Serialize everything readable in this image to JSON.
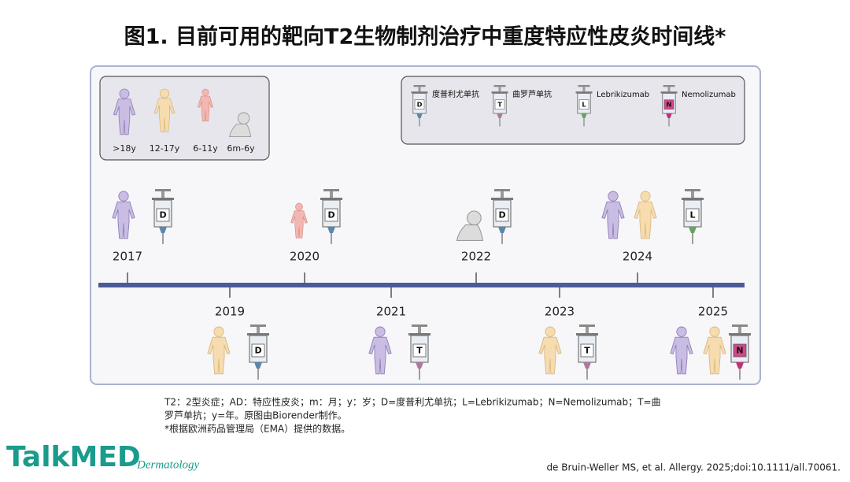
{
  "header": {
    "title": "图1. 目前可用的靶向T2生物制剂治疗中重度特应性皮炎时间线*"
  },
  "age_legend": [
    ">18y",
    "12-17y",
    "6-11y",
    "6m-6y"
  ],
  "drug_legend": [
    {
      "letter": "D",
      "name": "度普利尤单抗"
    },
    {
      "letter": "T",
      "name": "曲罗芦单抗"
    },
    {
      "letter": "L",
      "name": "Lebrikizumab"
    },
    {
      "letter": "N",
      "name": "Nemolizumab"
    }
  ],
  "timeline": [
    {
      "year": "2017",
      "letter": "D"
    },
    {
      "year": "2019",
      "letter": "D"
    },
    {
      "year": "2020",
      "letter": "D"
    },
    {
      "year": "2021",
      "letter": "T"
    },
    {
      "year": "2022",
      "letter": "D"
    },
    {
      "year": "2023",
      "letter": "T"
    },
    {
      "year": "2024",
      "letter": "L"
    },
    {
      "year": "2025",
      "letter": "N"
    }
  ],
  "footnote": [
    "T2：2型炎症；AD：特应性皮炎；m：月；y：岁；D=度普利尤单抗；L=Lebrikizumab；N=Nemolizumab；T=曲",
    "罗芦单抗；y=年。原图由Biorender制作。",
    "*根据欧洲药品管理局（EMA）提供的数据。"
  ],
  "logo": {
    "brand": "TalkMED",
    "sub": "Dermatology"
  },
  "citation": "de Bruin-Weller MS, et al. Allergy. 2025;doi:10.1111/all.70061."
}
